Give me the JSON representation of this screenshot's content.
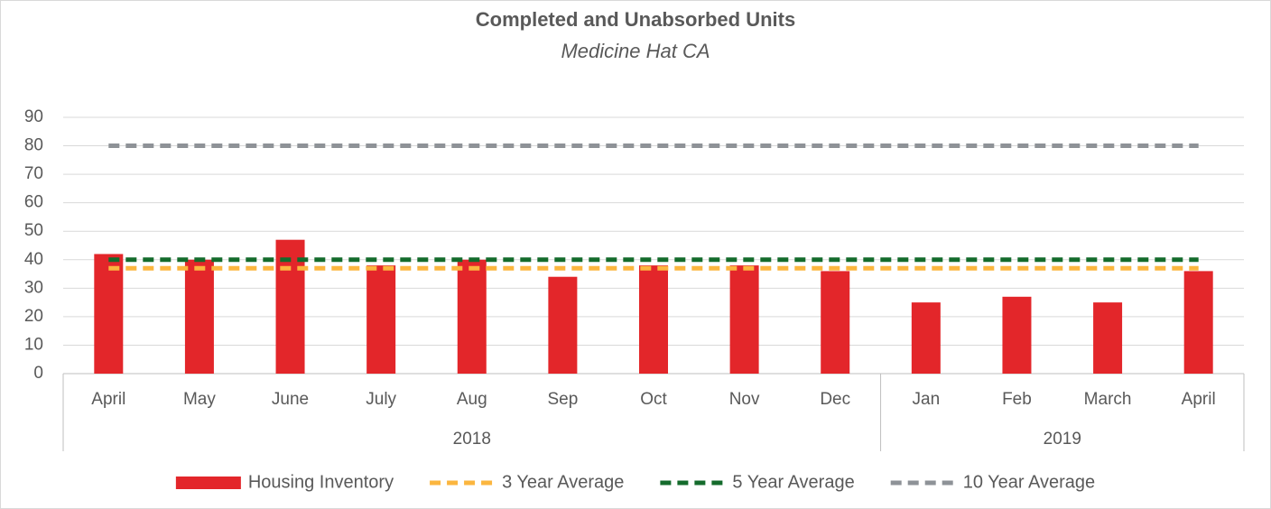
{
  "chart_data": {
    "type": "bar",
    "title": "Completed and Unabsorbed Units",
    "subtitle": "Medicine Hat CA",
    "category_groups": [
      {
        "label": "2018",
        "categories": [
          "April",
          "May",
          "June",
          "July",
          "Aug",
          "Sep",
          "Oct",
          "Nov",
          "Dec"
        ]
      },
      {
        "label": "2019",
        "categories": [
          "Jan",
          "Feb",
          "March",
          "April"
        ]
      }
    ],
    "series": [
      {
        "name": "Housing Inventory",
        "type": "bar",
        "color": "#e3262a",
        "values": [
          42,
          40,
          47,
          38,
          40,
          34,
          38,
          38,
          36,
          25,
          27,
          25,
          36
        ]
      },
      {
        "name": "3 Year Average",
        "type": "line",
        "dashed": true,
        "color": "#fbb63f",
        "values": [
          37,
          37,
          37,
          37,
          37,
          37,
          37,
          37,
          37,
          37,
          37,
          37,
          37
        ]
      },
      {
        "name": "5 Year Average",
        "type": "line",
        "dashed": true,
        "color": "#146b2c",
        "values": [
          40,
          40,
          40,
          40,
          40,
          40,
          40,
          40,
          40,
          40,
          40,
          40,
          40
        ]
      },
      {
        "name": "10 Year Average",
        "type": "line",
        "dashed": true,
        "color": "#8e9297",
        "values": [
          80,
          80,
          80,
          80,
          80,
          80,
          80,
          80,
          80,
          80,
          80,
          80,
          80
        ]
      }
    ],
    "ylim": [
      0,
      90
    ],
    "yticks": [
      0,
      10,
      20,
      30,
      40,
      50,
      60,
      70,
      80,
      90
    ],
    "grid": true,
    "legend": "bottom"
  }
}
